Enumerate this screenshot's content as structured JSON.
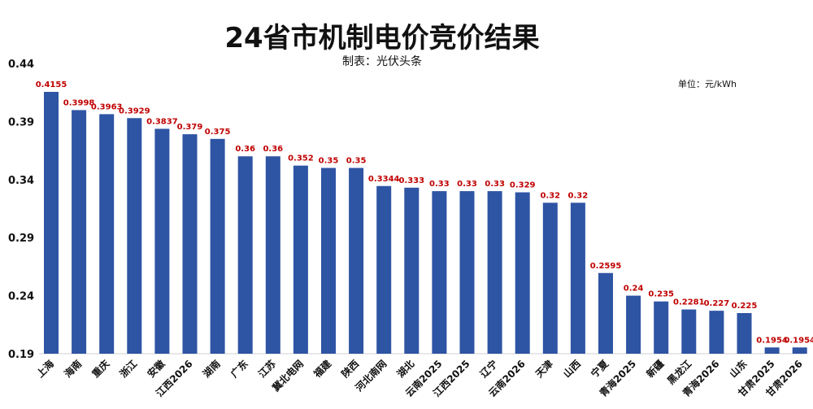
{
  "chart_data": {
    "type": "bar",
    "title": "24省市机制电价竞价结果",
    "subtitle": "制表：光伏头条",
    "unit_label": "单位：元/kWh",
    "categories": [
      "上海",
      "海南",
      "重庆",
      "浙江",
      "安徽",
      "江西2026",
      "湖南",
      "广东",
      "江苏",
      "冀北电网",
      "福建",
      "陕西",
      "河北南网",
      "湖北",
      "云南2025",
      "江西2025",
      "辽宁",
      "云南2026",
      "天津",
      "山西",
      "宁夏",
      "青海2025",
      "新疆",
      "黑龙江",
      "青海2026",
      "山东",
      "甘肃2025",
      "甘肃2026"
    ],
    "values": [
      0.4155,
      0.3998,
      0.3963,
      0.3929,
      0.3837,
      0.379,
      0.375,
      0.36,
      0.36,
      0.352,
      0.35,
      0.35,
      0.3344,
      0.333,
      0.33,
      0.33,
      0.33,
      0.329,
      0.32,
      0.32,
      0.2595,
      0.24,
      0.235,
      0.2281,
      0.227,
      0.225,
      0.1954,
      0.1954
    ],
    "value_labels": [
      "0.4155",
      "0.3998",
      "0.3963",
      "0.3929",
      "0.3837",
      "0.379",
      "0.375",
      "0.36",
      "0.36",
      "0.352",
      "0.35",
      "0.35",
      "0.3344",
      "0.333",
      "0.33",
      "0.33",
      "0.33",
      "0.329",
      "0.32",
      "0.32",
      "0.2595",
      "0.24",
      "0.235",
      "0.2281",
      "0.227",
      "0.225",
      "0.1954",
      "0.1954"
    ],
    "yticks": [
      "0.19",
      "0.24",
      "0.29",
      "0.34",
      "0.39",
      "0.44"
    ],
    "ylim": [
      0.19,
      0.44
    ],
    "grid": false,
    "colors": {
      "bar": "#2e54a4",
      "value_label": "#c00000",
      "text": "#111111"
    }
  }
}
